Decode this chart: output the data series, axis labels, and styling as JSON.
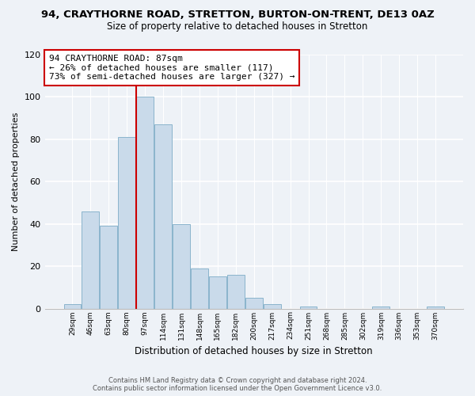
{
  "title": "94, CRAYTHORNE ROAD, STRETTON, BURTON-ON-TRENT, DE13 0AZ",
  "subtitle": "Size of property relative to detached houses in Stretton",
  "xlabel": "Distribution of detached houses by size in Stretton",
  "ylabel": "Number of detached properties",
  "bar_color": "#c9daea",
  "bar_edge_color": "#8ab4cc",
  "categories": [
    "29sqm",
    "46sqm",
    "63sqm",
    "80sqm",
    "97sqm",
    "114sqm",
    "131sqm",
    "148sqm",
    "165sqm",
    "182sqm",
    "200sqm",
    "217sqm",
    "234sqm",
    "251sqm",
    "268sqm",
    "285sqm",
    "302sqm",
    "319sqm",
    "336sqm",
    "353sqm",
    "370sqm"
  ],
  "values": [
    2,
    46,
    39,
    81,
    100,
    87,
    40,
    19,
    15,
    16,
    5,
    2,
    0,
    1,
    0,
    0,
    0,
    1,
    0,
    0,
    1
  ],
  "ylim": [
    0,
    120
  ],
  "yticks": [
    0,
    20,
    40,
    60,
    80,
    100,
    120
  ],
  "vline_x_idx": 3.5,
  "vline_color": "#cc0000",
  "annotation_text": "94 CRAYTHORNE ROAD: 87sqm\n← 26% of detached houses are smaller (117)\n73% of semi-detached houses are larger (327) →",
  "annotation_box_color": "#ffffff",
  "annotation_box_edge": "#cc0000",
  "footer_line1": "Contains HM Land Registry data © Crown copyright and database right 2024.",
  "footer_line2": "Contains public sector information licensed under the Open Government Licence v3.0.",
  "bg_color": "#eef2f7",
  "grid_color": "#ffffff",
  "title_fontsize": 9.5,
  "subtitle_fontsize": 8.5
}
